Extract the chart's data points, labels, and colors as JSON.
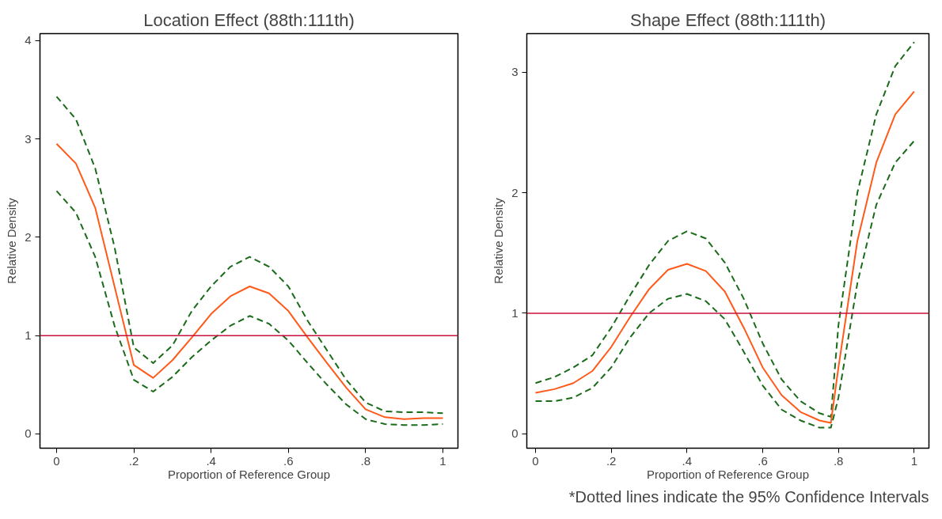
{
  "chart_data": [
    {
      "type": "line",
      "title": "Location Effect (88th:111th)",
      "xlabel": "Proportion of Reference Group",
      "ylabel": "Relative Density",
      "x": [
        0,
        0.05,
        0.1,
        0.15,
        0.2,
        0.25,
        0.3,
        0.35,
        0.4,
        0.45,
        0.5,
        0.55,
        0.6,
        0.65,
        0.7,
        0.75,
        0.8,
        0.85,
        0.9,
        0.95,
        1
      ],
      "xlim": [
        -0.043,
        1.039
      ],
      "ylim": [
        -0.145,
        4.07
      ],
      "xticks": [
        {
          "value": 0,
          "label": "0"
        },
        {
          "value": 0.2,
          "label": ".2"
        },
        {
          "value": 0.4,
          "label": ".4"
        },
        {
          "value": 0.6,
          "label": ".6"
        },
        {
          "value": 0.8,
          "label": ".8"
        },
        {
          "value": 1,
          "label": "1"
        }
      ],
      "yticks": [
        0,
        1,
        2,
        3,
        4
      ],
      "grid": false,
      "ref_lines": [
        {
          "axis": "y",
          "value": 1,
          "label": null,
          "color": "#c8103c"
        }
      ],
      "series": [
        {
          "color": "#1a6b1a",
          "line_style": "dashed",
          "values": [
            3.43,
            3.2,
            2.7,
            1.9,
            0.88,
            0.72,
            0.9,
            1.25,
            1.5,
            1.7,
            1.8,
            1.7,
            1.5,
            1.15,
            0.85,
            0.55,
            0.32,
            0.23,
            0.22,
            0.22,
            0.21
          ]
        },
        {
          "color": "#ff5a1a",
          "line_style": "solid",
          "values": [
            2.95,
            2.75,
            2.3,
            1.5,
            0.7,
            0.57,
            0.75,
            0.98,
            1.22,
            1.4,
            1.5,
            1.43,
            1.25,
            0.98,
            0.72,
            0.47,
            0.25,
            0.17,
            0.15,
            0.16,
            0.16
          ]
        },
        {
          "color": "#1a6b1a",
          "line_style": "dashed",
          "values": [
            2.47,
            2.25,
            1.8,
            1.1,
            0.55,
            0.43,
            0.58,
            0.78,
            0.95,
            1.1,
            1.2,
            1.12,
            0.95,
            0.72,
            0.5,
            0.3,
            0.15,
            0.1,
            0.09,
            0.09,
            0.1
          ]
        }
      ]
    },
    {
      "type": "line",
      "title": "Shape Effect (88th:111th)",
      "xlabel": "Proportion of Reference Group",
      "ylabel": "Relative Density",
      "x": [
        0,
        0.05,
        0.1,
        0.15,
        0.2,
        0.25,
        0.3,
        0.35,
        0.4,
        0.45,
        0.5,
        0.55,
        0.6,
        0.65,
        0.7,
        0.75,
        0.78,
        0.8,
        0.85,
        0.9,
        0.95,
        1
      ],
      "xlim": [
        -0.023,
        1.039
      ],
      "ylim": [
        -0.12,
        3.32
      ],
      "xticks": [
        {
          "value": 0,
          "label": "0"
        },
        {
          "value": 0.2,
          "label": ".2"
        },
        {
          "value": 0.4,
          "label": ".4"
        },
        {
          "value": 0.6,
          "label": ".6"
        },
        {
          "value": 0.8,
          "label": ".8"
        },
        {
          "value": 1,
          "label": "1"
        }
      ],
      "yticks": [
        0,
        1,
        2,
        3
      ],
      "grid": false,
      "ref_lines": [
        {
          "axis": "y",
          "value": 1,
          "label": null,
          "color": "#c8103c"
        }
      ],
      "annotations": [
        "*Dotted lines indicate the 95% Confidence Intervals"
      ],
      "series": [
        {
          "color": "#1a6b1a",
          "line_style": "dashed",
          "values": [
            0.42,
            0.47,
            0.55,
            0.65,
            0.88,
            1.15,
            1.4,
            1.6,
            1.68,
            1.62,
            1.42,
            1.12,
            0.75,
            0.45,
            0.27,
            0.17,
            0.14,
            0.9,
            2.0,
            2.65,
            3.05,
            3.25
          ]
        },
        {
          "color": "#ff5a1a",
          "line_style": "solid",
          "values": [
            0.34,
            0.37,
            0.42,
            0.52,
            0.72,
            0.97,
            1.2,
            1.36,
            1.41,
            1.35,
            1.18,
            0.88,
            0.55,
            0.32,
            0.18,
            0.11,
            0.09,
            0.55,
            1.6,
            2.25,
            2.65,
            2.84
          ]
        },
        {
          "color": "#1a6b1a",
          "line_style": "dashed",
          "values": [
            0.27,
            0.27,
            0.3,
            0.38,
            0.55,
            0.8,
            1.0,
            1.12,
            1.16,
            1.1,
            0.95,
            0.68,
            0.4,
            0.2,
            0.11,
            0.05,
            0.05,
            0.3,
            1.25,
            1.9,
            2.25,
            2.43
          ]
        }
      ]
    }
  ]
}
